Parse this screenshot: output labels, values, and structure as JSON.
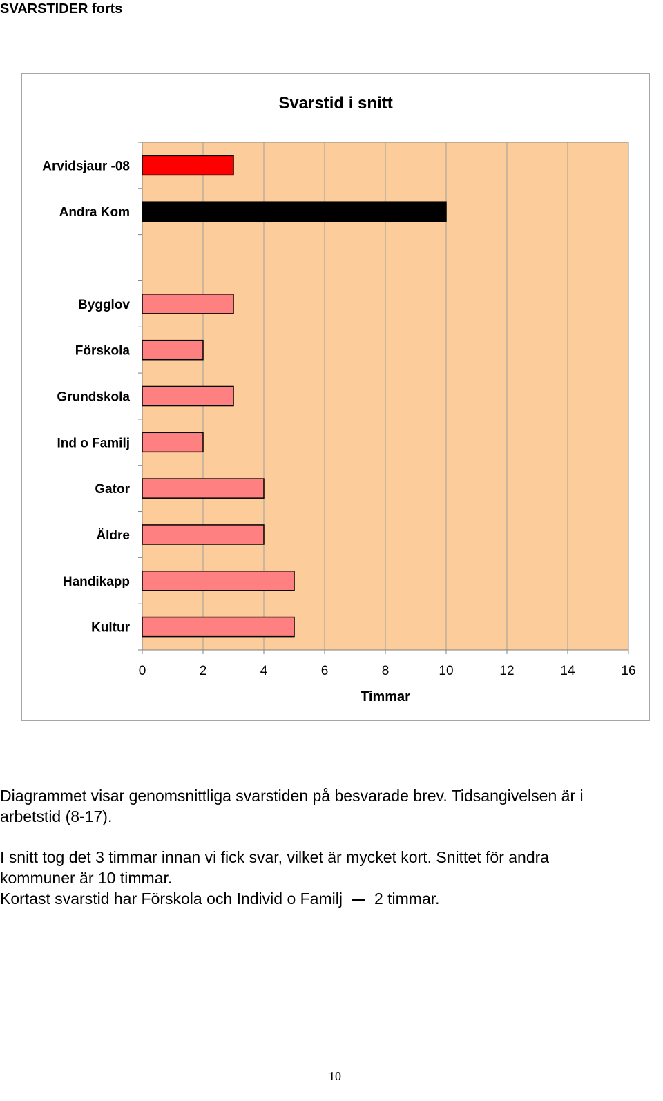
{
  "header": {
    "section_title": "SVARSTIDER forts"
  },
  "chart_data": {
    "type": "bar",
    "orientation": "horizontal",
    "title": "Svarstid i snitt",
    "xlabel": "Timmar",
    "ylabel": "",
    "xlim": [
      0,
      16
    ],
    "x_ticks": [
      "0",
      "2",
      "4",
      "6",
      "8",
      "10",
      "12",
      "14",
      "16"
    ],
    "grid": true,
    "legend": "none",
    "plot_background": "#FCCC9A",
    "categories": [
      "Arvidsjaur -08",
      "Andra Kom",
      "",
      "Bygglov",
      "Förskola",
      "Grundskola",
      "Ind o Familj",
      "Gator",
      "Äldre",
      "Handikapp",
      "Kultur"
    ],
    "values": [
      3,
      10,
      null,
      3,
      2,
      3,
      2,
      4,
      4,
      5,
      5
    ],
    "bar_colors": [
      "#FF0000",
      "#000000",
      "",
      "#FF8080",
      "#FF8080",
      "#FF8080",
      "#FF8080",
      "#FF8080",
      "#FF8080",
      "#FF8080",
      "#FF8080"
    ]
  },
  "body": {
    "paragraph1_line1": "Diagrammet visar genomsnittliga svarstiden på besvarade brev. Tidsangivelsen är i",
    "paragraph1_line2": "arbetstid (8-17).",
    "paragraph2_line1": "I snitt tog det 3 timmar innan vi fick svar, vilket är mycket kort. Snittet för andra",
    "paragraph2_line2": "kommuner är 10 timmar.",
    "paragraph3_part1": "Kortast svarstid har Förskola och Individ o Familj",
    "paragraph3_part2": "2 timmar."
  },
  "footer": {
    "page_number": "10"
  }
}
